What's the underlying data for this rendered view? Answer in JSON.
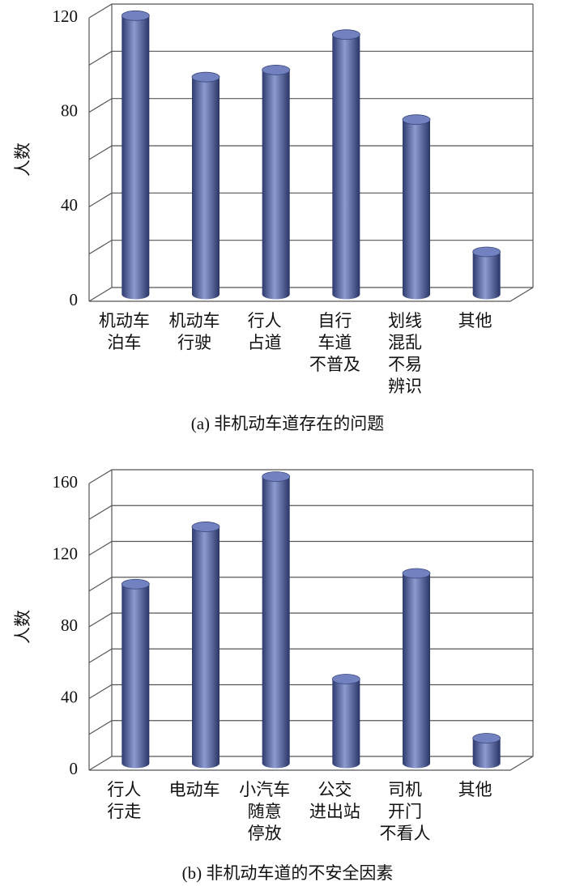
{
  "chart_data": [
    {
      "type": "bar3d",
      "title": "(a) 非机动车道存在的问题",
      "y_label": "人数",
      "categories": [
        [
          "机动车",
          "泊车"
        ],
        [
          "机动车",
          "行驶"
        ],
        [
          "行人",
          "占道"
        ],
        [
          "自行",
          "车道",
          "不普及"
        ],
        [
          "划线",
          "混乱",
          "不易",
          "辨识"
        ],
        [
          "其他"
        ]
      ],
      "values": [
        118,
        92,
        95,
        110,
        74,
        18
      ],
      "color": "#5a6aa8",
      "ylim": [
        0,
        120
      ],
      "yticks": [
        0,
        40,
        80,
        120
      ],
      "minor_yticks": [
        20,
        60,
        100
      ],
      "grid": true
    },
    {
      "type": "bar3d",
      "title": "(b) 非机动车道的不安全因素",
      "y_label": "人数",
      "categories": [
        [
          "行人",
          "行走"
        ],
        [
          "电动车"
        ],
        [
          "小汽车",
          "随意",
          "停放"
        ],
        [
          "公交",
          "进出站"
        ],
        [
          "司机",
          "开门",
          "不看人"
        ],
        [
          "其他"
        ]
      ],
      "values": [
        100,
        132,
        160,
        47,
        106,
        14
      ],
      "color": "#5a6aa8",
      "ylim": [
        0,
        160
      ],
      "yticks": [
        0,
        40,
        80,
        120,
        160
      ],
      "minor_yticks": [
        20,
        60,
        100,
        140
      ],
      "grid": true
    }
  ]
}
